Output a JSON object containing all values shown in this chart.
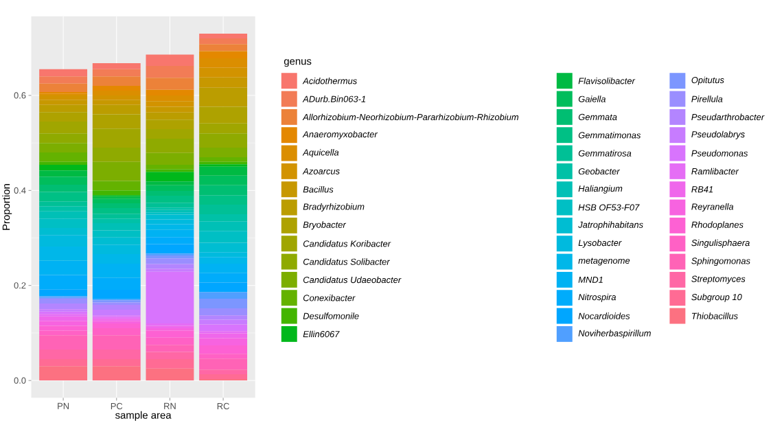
{
  "chart_data": {
    "type": "bar",
    "stacked": true,
    "xlabel": "sample area",
    "ylabel": "Proportion",
    "legend_title": "genus",
    "legend": "right",
    "grid": true,
    "categories": [
      "PN",
      "PC",
      "RN",
      "RC"
    ],
    "ylim": [
      -0.0365,
      0.7665
    ],
    "yticks": [
      {
        "value": 0,
        "label": "0.0"
      },
      0.2,
      0.4,
      0.6
    ],
    "series": [
      {
        "name": "Thiobacillus",
        "color": "#fc7181",
        "values": [
          0.03,
          0.03,
          0.025,
          0.003
        ]
      },
      {
        "name": "Subgroup 10",
        "color": "#ff6b94",
        "values": [
          0.015,
          0.015,
          0.02,
          0.01
        ]
      },
      {
        "name": "Streptomyces",
        "color": "#ff67a5",
        "values": [
          0.02,
          0.02,
          0.015,
          0.01
        ]
      },
      {
        "name": "Sphingomonas",
        "color": "#ff63b6",
        "values": [
          0.03,
          0.03,
          0.015,
          0.023
        ]
      },
      {
        "name": "Singulisphaera",
        "color": "#ff61c5",
        "values": [
          0.01,
          0.015,
          0.015,
          0.01
        ]
      },
      {
        "name": "Rhodoplanes",
        "color": "#fd61d3",
        "values": [
          0.01,
          0.01,
          0.015,
          0.018
        ]
      },
      {
        "name": "Reyranella",
        "color": "#f763e0",
        "values": [
          0.01,
          0.005,
          0.005,
          0.015
        ]
      },
      {
        "name": "RB41",
        "color": "#ef67eb",
        "values": [
          0.01,
          0.005,
          0.005,
          0.01
        ]
      },
      {
        "name": "Ramlibacter",
        "color": "#e56df5",
        "values": [
          0.005,
          0.004,
          0.005,
          0.005
        ]
      },
      {
        "name": "Pseudomonas",
        "color": "#d874fd",
        "values": [
          0.005,
          0.003,
          0.109,
          0.014
        ]
      },
      {
        "name": "Pseudolabrys",
        "color": "#c77cff",
        "values": [
          0.005,
          0.012,
          0.006,
          0.01
        ]
      },
      {
        "name": "Pseudarthrobacter",
        "color": "#b385ff",
        "values": [
          0.012,
          0.01,
          0.01,
          0.009
        ]
      },
      {
        "name": "Pirellula",
        "color": "#9a8eff",
        "values": [
          0.01,
          0.005,
          0.012,
          0.015
        ]
      },
      {
        "name": "Opitutus",
        "color": "#7c96ff",
        "values": [
          0.002,
          0.005,
          0.006,
          0.02
        ]
      },
      {
        "name": "Noviherbaspirillum",
        "color": "#509fff",
        "values": [
          0.003,
          0.002,
          0.004,
          0.014
        ]
      },
      {
        "name": "Nocardioides",
        "color": "#00a6ff",
        "values": [
          0.015,
          0.02,
          0.02,
          0.02
        ]
      },
      {
        "name": "Nitrospira",
        "color": "#00acfb",
        "values": [
          0.03,
          0.025,
          0.015,
          0.02
        ]
      },
      {
        "name": "MND1",
        "color": "#00b2f3",
        "values": [
          0.03,
          0.03,
          0.015,
          0.02
        ]
      },
      {
        "name": "metagenome",
        "color": "#00b7e9",
        "values": [
          0.03,
          0.02,
          0.012,
          0.014
        ]
      },
      {
        "name": "Lysobacter",
        "color": "#00bade",
        "values": [
          0.024,
          0.02,
          0.01,
          0.01
        ]
      },
      {
        "name": "Jatrophihabitans",
        "color": "#00bdd2",
        "values": [
          0.015,
          0.015,
          0.01,
          0.02
        ]
      },
      {
        "name": "HSB OF53-F07",
        "color": "#00bfc4",
        "values": [
          0.02,
          0.015,
          0.005,
          0.025
        ]
      },
      {
        "name": "Haliangium",
        "color": "#00c0b6",
        "values": [
          0.015,
          0.015,
          0.005,
          0.02
        ]
      },
      {
        "name": "Geobacter",
        "color": "#00c1a7",
        "values": [
          0.011,
          0.01,
          0.005,
          0.015
        ]
      },
      {
        "name": "Gemmatirosa",
        "color": "#00c096",
        "values": [
          0.01,
          0.01,
          0.01,
          0.02
        ]
      },
      {
        "name": "Gemmatimonas",
        "color": "#00c085",
        "values": [
          0.02,
          0.012,
          0.015,
          0.02
        ]
      },
      {
        "name": "Gemmata",
        "color": "#00be72",
        "values": [
          0.015,
          0.01,
          0.01,
          0.021
        ]
      },
      {
        "name": "Gaiella",
        "color": "#00bd5c",
        "values": [
          0.017,
          0.009,
          0.012,
          0.02
        ]
      },
      {
        "name": "Flavisolibacter",
        "color": "#00ba43",
        "values": [
          0.013,
          0.005,
          0.008,
          0.019
        ]
      },
      {
        "name": "Ellin6067",
        "color": "#00b81b",
        "values": [
          0.012,
          0.003,
          0.02,
          0.005
        ]
      },
      {
        "name": "Desulfomonile",
        "color": "#43b500",
        "values": [
          0.006,
          0.01,
          0.005,
          0.005
        ]
      },
      {
        "name": "Conexibacter",
        "color": "#64b200",
        "values": [
          0.02,
          0.02,
          0.01,
          0.01
        ]
      },
      {
        "name": "Candidatus Udaeobacter",
        "color": "#7cae00",
        "values": [
          0.02,
          0.04,
          0.025,
          0.02
        ]
      },
      {
        "name": "Candidatus Solibacter",
        "color": "#8faa00",
        "values": [
          0.02,
          0.03,
          0.03,
          0.03
        ]
      },
      {
        "name": "Candidatus Koribacter",
        "color": "#a0a600",
        "values": [
          0.025,
          0.04,
          0.02,
          0.021
        ]
      },
      {
        "name": "Bryobacter",
        "color": "#aea200",
        "values": [
          0.02,
          0.03,
          0.02,
          0.035
        ]
      },
      {
        "name": "Bradyrhizobium",
        "color": "#bb9d00",
        "values": [
          0.015,
          0.02,
          0.015,
          0.04
        ]
      },
      {
        "name": "Bacillus",
        "color": "#c79800",
        "values": [
          0.01,
          0.01,
          0.012,
          0.022
        ]
      },
      {
        "name": "Azoarcus",
        "color": "#d29300",
        "values": [
          0.01,
          0.01,
          0.012,
          0.02
        ]
      },
      {
        "name": "Aquicella",
        "color": "#db8e00",
        "values": [
          0.003,
          0.01,
          0.012,
          0.02
        ]
      },
      {
        "name": "Anaeromyxobacter",
        "color": "#e48800",
        "values": [
          0.004,
          0.01,
          0.012,
          0.015
        ]
      },
      {
        "name": "Allorhizobium-Neorhizobium-Pararhizobium-Rhizobium",
        "color": "#ec8239",
        "values": [
          0.018,
          0.02,
          0.025,
          0.015
        ]
      },
      {
        "name": "ADurb.Bin063-1",
        "color": "#f27c56",
        "values": [
          0.015,
          0.015,
          0.025,
          0.012
        ]
      },
      {
        "name": "Acidothermus",
        "color": "#f8766d",
        "values": [
          0.015,
          0.013,
          0.024,
          0.01
        ]
      }
    ]
  }
}
